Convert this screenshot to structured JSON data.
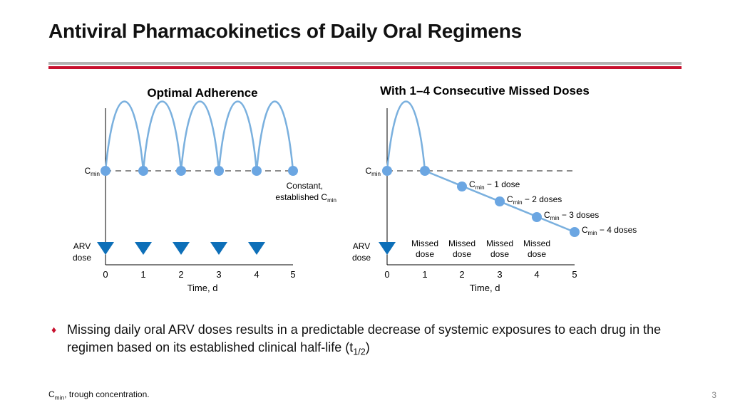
{
  "header": {
    "title": "Antiviral Pharmacokinetics of Daily Oral Regimens"
  },
  "left_panel": {
    "title": "Optimal Adherence",
    "cmin_label": "C",
    "cmin_sub": "min",
    "note_line1": "Constant,",
    "note_line2": "established C",
    "note_sub": "min",
    "arv_line1": "ARV",
    "arv_line2": "dose",
    "x_ticks": [
      "0",
      "1",
      "2",
      "3",
      "4",
      "5"
    ],
    "x_label": "Time, d"
  },
  "right_panel": {
    "title": "With 1–4 Consecutive Missed Doses",
    "cmin_label": "C",
    "cmin_sub": "min",
    "arv_line1": "ARV",
    "arv_line2": "dose",
    "x_ticks": [
      "0",
      "1",
      "2",
      "3",
      "4",
      "5"
    ],
    "x_label": "Time, d",
    "missed_line1": "Missed",
    "missed_line2": "dose",
    "decline_labels": [
      {
        "c": "C",
        "sub": "min",
        "text": " − 1 dose"
      },
      {
        "c": "C",
        "sub": "min",
        "text": " − 2 doses"
      },
      {
        "c": "C",
        "sub": "min",
        "text": " − 3 doses"
      },
      {
        "c": "C",
        "sub": "min",
        "text": " − 4 doses"
      }
    ]
  },
  "bullet": {
    "text": "Missing daily oral ARV doses results in a predictable decrease of systemic exposures to each drug in the regimen based on its established clinical half-life (t",
    "sub": "1/2",
    "end": ")"
  },
  "footnote": {
    "c": "C",
    "sub": "min",
    "text": ", trough concentration."
  },
  "page_number": "3",
  "colors": {
    "curve": "#7ab0de",
    "marker": "#6ba6e2",
    "triangle": "#0d6fb8",
    "accent": "#c8102e"
  }
}
